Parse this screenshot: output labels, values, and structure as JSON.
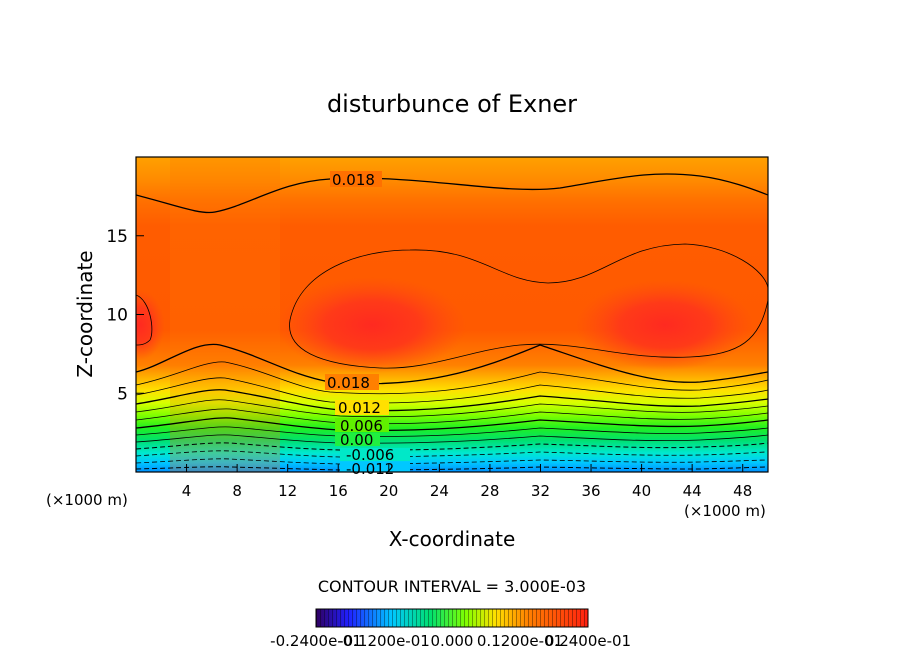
{
  "chart_data": {
    "type": "heatmap",
    "title": "disturbunce of Exner",
    "xlabel": "X-coordinate",
    "ylabel": "Z-coordinate",
    "x_unit": "(×1000 m)",
    "y_unit": "(×1000 m)",
    "xlim": [
      0,
      50
    ],
    "ylim": [
      0,
      20
    ],
    "x_ticks": [
      "4",
      "8",
      "12",
      "16",
      "20",
      "24",
      "28",
      "32",
      "36",
      "40",
      "44",
      "48"
    ],
    "y_ticks": [
      "5",
      "10",
      "15"
    ],
    "contour_interval_label": "CONTOUR INTERVAL = 3.000E-03",
    "contour_labels": [
      "0.018",
      "0.018",
      "0.012",
      "0.006",
      "0.00",
      "-0.006",
      "-0.012"
    ],
    "colorbar_labels": [
      "-0.2400e-01",
      "-0.1200e-01",
      "0.000",
      "0.1200e-01",
      "0.2400e-01"
    ],
    "colorbar_range": [
      -0.024,
      0.024
    ],
    "colors": {
      "high": "#ff2a18",
      "mid": "#ff6a00",
      "low": "#00e0ff"
    }
  }
}
